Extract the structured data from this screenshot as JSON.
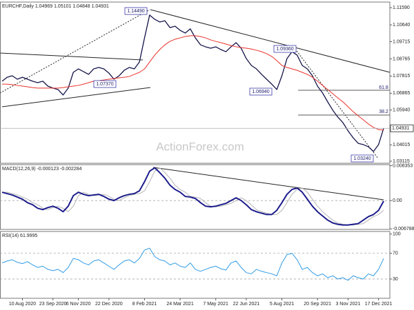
{
  "chart_data": [
    {
      "type": "line",
      "title": "EURCHF,Daily  1.04969 1.05101 1.04848 1.04931",
      "watermark": "ActionForex.com",
      "price_label": "1.04931",
      "annotations": [
        "1.14490",
        "1.07370",
        "1.06940",
        "1.09360",
        "1.03240",
        "61.8",
        "38.2"
      ],
      "ylim": [
        1.03,
        1.119
      ],
      "yticks": [
        {
          "value": 1.1159,
          "label": "1.11590"
        },
        {
          "value": 1.1064,
          "label": "1.10640"
        },
        {
          "value": 1.09715,
          "label": "1.09715"
        },
        {
          "value": 1.08765,
          "label": "1.08765"
        },
        {
          "value": 1.07815,
          "label": "1.07815"
        },
        {
          "value": 1.06865,
          "label": "1.06865"
        },
        {
          "value": 1.0594,
          "label": "1.05940"
        },
        {
          "value": 1.04015,
          "label": "1.04015"
        },
        {
          "value": 1.03115,
          "label": "1.03115"
        }
      ],
      "grid": false,
      "series": [
        {
          "color": "#14144a",
          "width": 1.3,
          "values": [
            1.0753,
            1.0775,
            1.0783,
            1.0764,
            1.0775,
            1.0764,
            1.0753,
            1.0745,
            1.0753,
            1.0726,
            1.0715,
            1.0707,
            1.0677,
            1.0715,
            1.0802,
            1.0821,
            1.0806,
            1.0791,
            1.0821,
            1.0829,
            1.0821,
            1.0798,
            1.0764,
            1.0783,
            1.0813,
            1.0829,
            1.0821,
            1.0859,
            1.0992,
            1.1118,
            1.1095,
            1.108,
            1.1087,
            1.1049,
            1.1057,
            1.1034,
            1.1019,
            1.1042,
            1.0992,
            1.0954,
            1.0943,
            1.0935,
            1.0943,
            1.0928,
            1.0916,
            1.0943,
            1.0966,
            1.0935,
            1.0878,
            1.084,
            1.0821,
            1.0791,
            1.0764,
            1.0737,
            1.0707,
            1.0783,
            1.0878,
            1.0916,
            1.0897,
            1.084,
            1.0821,
            1.0783,
            1.0726,
            1.0688,
            1.0639,
            1.0593,
            1.0555,
            1.0524,
            1.0479,
            1.0441,
            1.041,
            1.0403,
            1.0391,
            1.0365,
            1.0403,
            1.04931
          ]
        },
        {
          "color": "#e8312a",
          "width": 1,
          "values": [
            1.0737,
            1.0737,
            1.0734,
            1.073,
            1.0726,
            1.0722,
            1.0718,
            1.0715,
            1.0715,
            1.0715,
            1.0715,
            1.0715,
            1.0718,
            1.0722,
            1.0726,
            1.073,
            1.0737,
            1.0745,
            1.0753,
            1.0756,
            1.076,
            1.0764,
            1.0768,
            1.0772,
            1.0775,
            1.0779,
            1.0791,
            1.0802,
            1.0821,
            1.0859,
            1.0897,
            1.0928,
            1.0954,
            1.0973,
            1.0985,
            1.0992,
            1.1,
            1.1004,
            1.1004,
            1.1,
            1.0992,
            1.0981,
            1.0973,
            1.0966,
            1.0958,
            1.095,
            1.0943,
            1.0939,
            1.0935,
            1.0931,
            1.0924,
            1.0916,
            1.0905,
            1.089,
            1.0867,
            1.084,
            1.0829,
            1.0821,
            1.0813,
            1.0802,
            1.0791,
            1.0775,
            1.0753,
            1.073,
            1.0707,
            1.0684,
            1.0661,
            1.0639,
            1.0612,
            1.0585,
            1.0562,
            1.054,
            1.0517,
            1.0498,
            1.0486,
            1.0483
          ]
        }
      ]
    },
    {
      "type": "line",
      "title": "MACD(12,26,9) -0.000123 -0.002284",
      "ylim": [
        -0.0069,
        0.0086
      ],
      "yticks": [
        0.008353,
        {
          "value": 0,
          "label": "0.00"
        },
        -0.006788
      ],
      "grid": true,
      "series": [
        {
          "color": "#b4b4b4",
          "width": 1,
          "values": [
            0.002,
            0.002,
            0.00167,
            0.00134,
            0.00084,
            0.00033,
            -0.0005,
            -0.001,
            -0.00184,
            -0.00217,
            -0.00167,
            -0.00134,
            -0.00184,
            -0.00267,
            -0.00134,
            0.00117,
            0.002,
            0.0015,
            0.00117,
            0.00134,
            0.0015,
            0.001,
            0.00033,
            0,
            0.00067,
            0.00117,
            0.0015,
            0.00167,
            0.00234,
            0.00451,
            0.00702,
            0.00785,
            0.00668,
            0.00535,
            0.00368,
            0.00267,
            0.002,
            0.001,
            0.00084,
            0.0005,
            -0.0005,
            -0.00134,
            -0.0015,
            -0.00134,
            -0.001,
            -0.00067,
            0,
            0.00067,
            0,
            -0.001,
            -0.00217,
            -0.00267,
            -0.00301,
            -0.00334,
            -0.00334,
            -0.00234,
            -0.0005,
            0.0015,
            0.00267,
            0.00301,
            0.002,
            0.00033,
            -0.00134,
            -0.00267,
            -0.00368,
            -0.00468,
            -0.00535,
            -0.00568,
            -0.00585,
            -0.00585,
            -0.00568,
            -0.00551,
            -0.00468,
            -0.00384,
            -0.00334,
            -0.00228
          ]
        },
        {
          "color": "#1c1c8c",
          "width": 2,
          "values": [
            0.002,
            0.00167,
            0.00134,
            0.00084,
            0.00033,
            -0.0005,
            -0.001,
            -0.00184,
            -0.00217,
            -0.00167,
            -0.00134,
            -0.00184,
            -0.00267,
            -0.00134,
            0.00117,
            0.002,
            0.0015,
            0.00117,
            0.00134,
            0.0015,
            0.001,
            0.00033,
            0,
            0.00067,
            0.00117,
            0.0015,
            0.00167,
            0.00234,
            0.00451,
            0.00702,
            0.00785,
            0.00668,
            0.00535,
            0.00368,
            0.00267,
            0.002,
            0.001,
            0.00084,
            0.0005,
            -0.0005,
            -0.00134,
            -0.0015,
            -0.00134,
            -0.001,
            -0.00067,
            0,
            0.00067,
            0,
            -0.001,
            -0.00217,
            -0.00267,
            -0.00301,
            -0.00334,
            -0.00334,
            -0.00234,
            -0.0005,
            0.0015,
            0.00267,
            0.00301,
            0.002,
            0.00033,
            -0.00134,
            -0.00267,
            -0.00368,
            -0.00468,
            -0.00535,
            -0.00568,
            -0.00585,
            -0.00585,
            -0.00568,
            -0.00551,
            -0.00468,
            -0.00384,
            -0.00334,
            -0.00234,
            -0.00012
          ]
        }
      ]
    },
    {
      "type": "line",
      "title": "RSI(14) 61.9995",
      "ylim": [
        0,
        104
      ],
      "yticks": [
        100,
        70,
        30
      ],
      "grid": true,
      "categories": [
        null,
        null,
        null,
        null,
        "10 Aug 2020",
        null,
        null,
        null,
        null,
        null,
        "23 Sep 2020",
        null,
        null,
        null,
        null,
        "6 Nov 2020",
        null,
        null,
        null,
        null,
        null,
        "22 Dec 2020",
        null,
        null,
        null,
        null,
        null,
        null,
        "8 Feb 2021",
        null,
        null,
        null,
        null,
        null,
        null,
        "24 Mar 2021",
        null,
        null,
        null,
        null,
        null,
        null,
        "7 May 2021",
        null,
        null,
        null,
        null,
        null,
        "22 Jun 2021",
        null,
        null,
        null,
        null,
        null,
        null,
        "5 Aug 2021",
        null,
        null,
        null,
        null,
        null,
        null,
        "20 Sep 2021",
        null,
        null,
        null,
        null,
        null,
        "3 Nov 2021",
        null,
        null,
        null,
        null,
        null,
        "17 Dec 2021",
        null
      ],
      "series": [
        {
          "color": "#2f9be6",
          "width": 1,
          "values": [
            55,
            58,
            60,
            56,
            54,
            57,
            52,
            48,
            50,
            45,
            43,
            45,
            40,
            48,
            62,
            60,
            55,
            52,
            58,
            60,
            55,
            50,
            45,
            52,
            58,
            60,
            55,
            62,
            75,
            78,
            65,
            60,
            58,
            52,
            55,
            50,
            48,
            55,
            45,
            42,
            45,
            48,
            50,
            46,
            44,
            55,
            58,
            48,
            40,
            38,
            45,
            42,
            40,
            38,
            35,
            55,
            68,
            70,
            60,
            45,
            48,
            40,
            35,
            38,
            32,
            35,
            30,
            32,
            28,
            35,
            32,
            30,
            38,
            35,
            45,
            61.9995
          ]
        }
      ]
    }
  ]
}
